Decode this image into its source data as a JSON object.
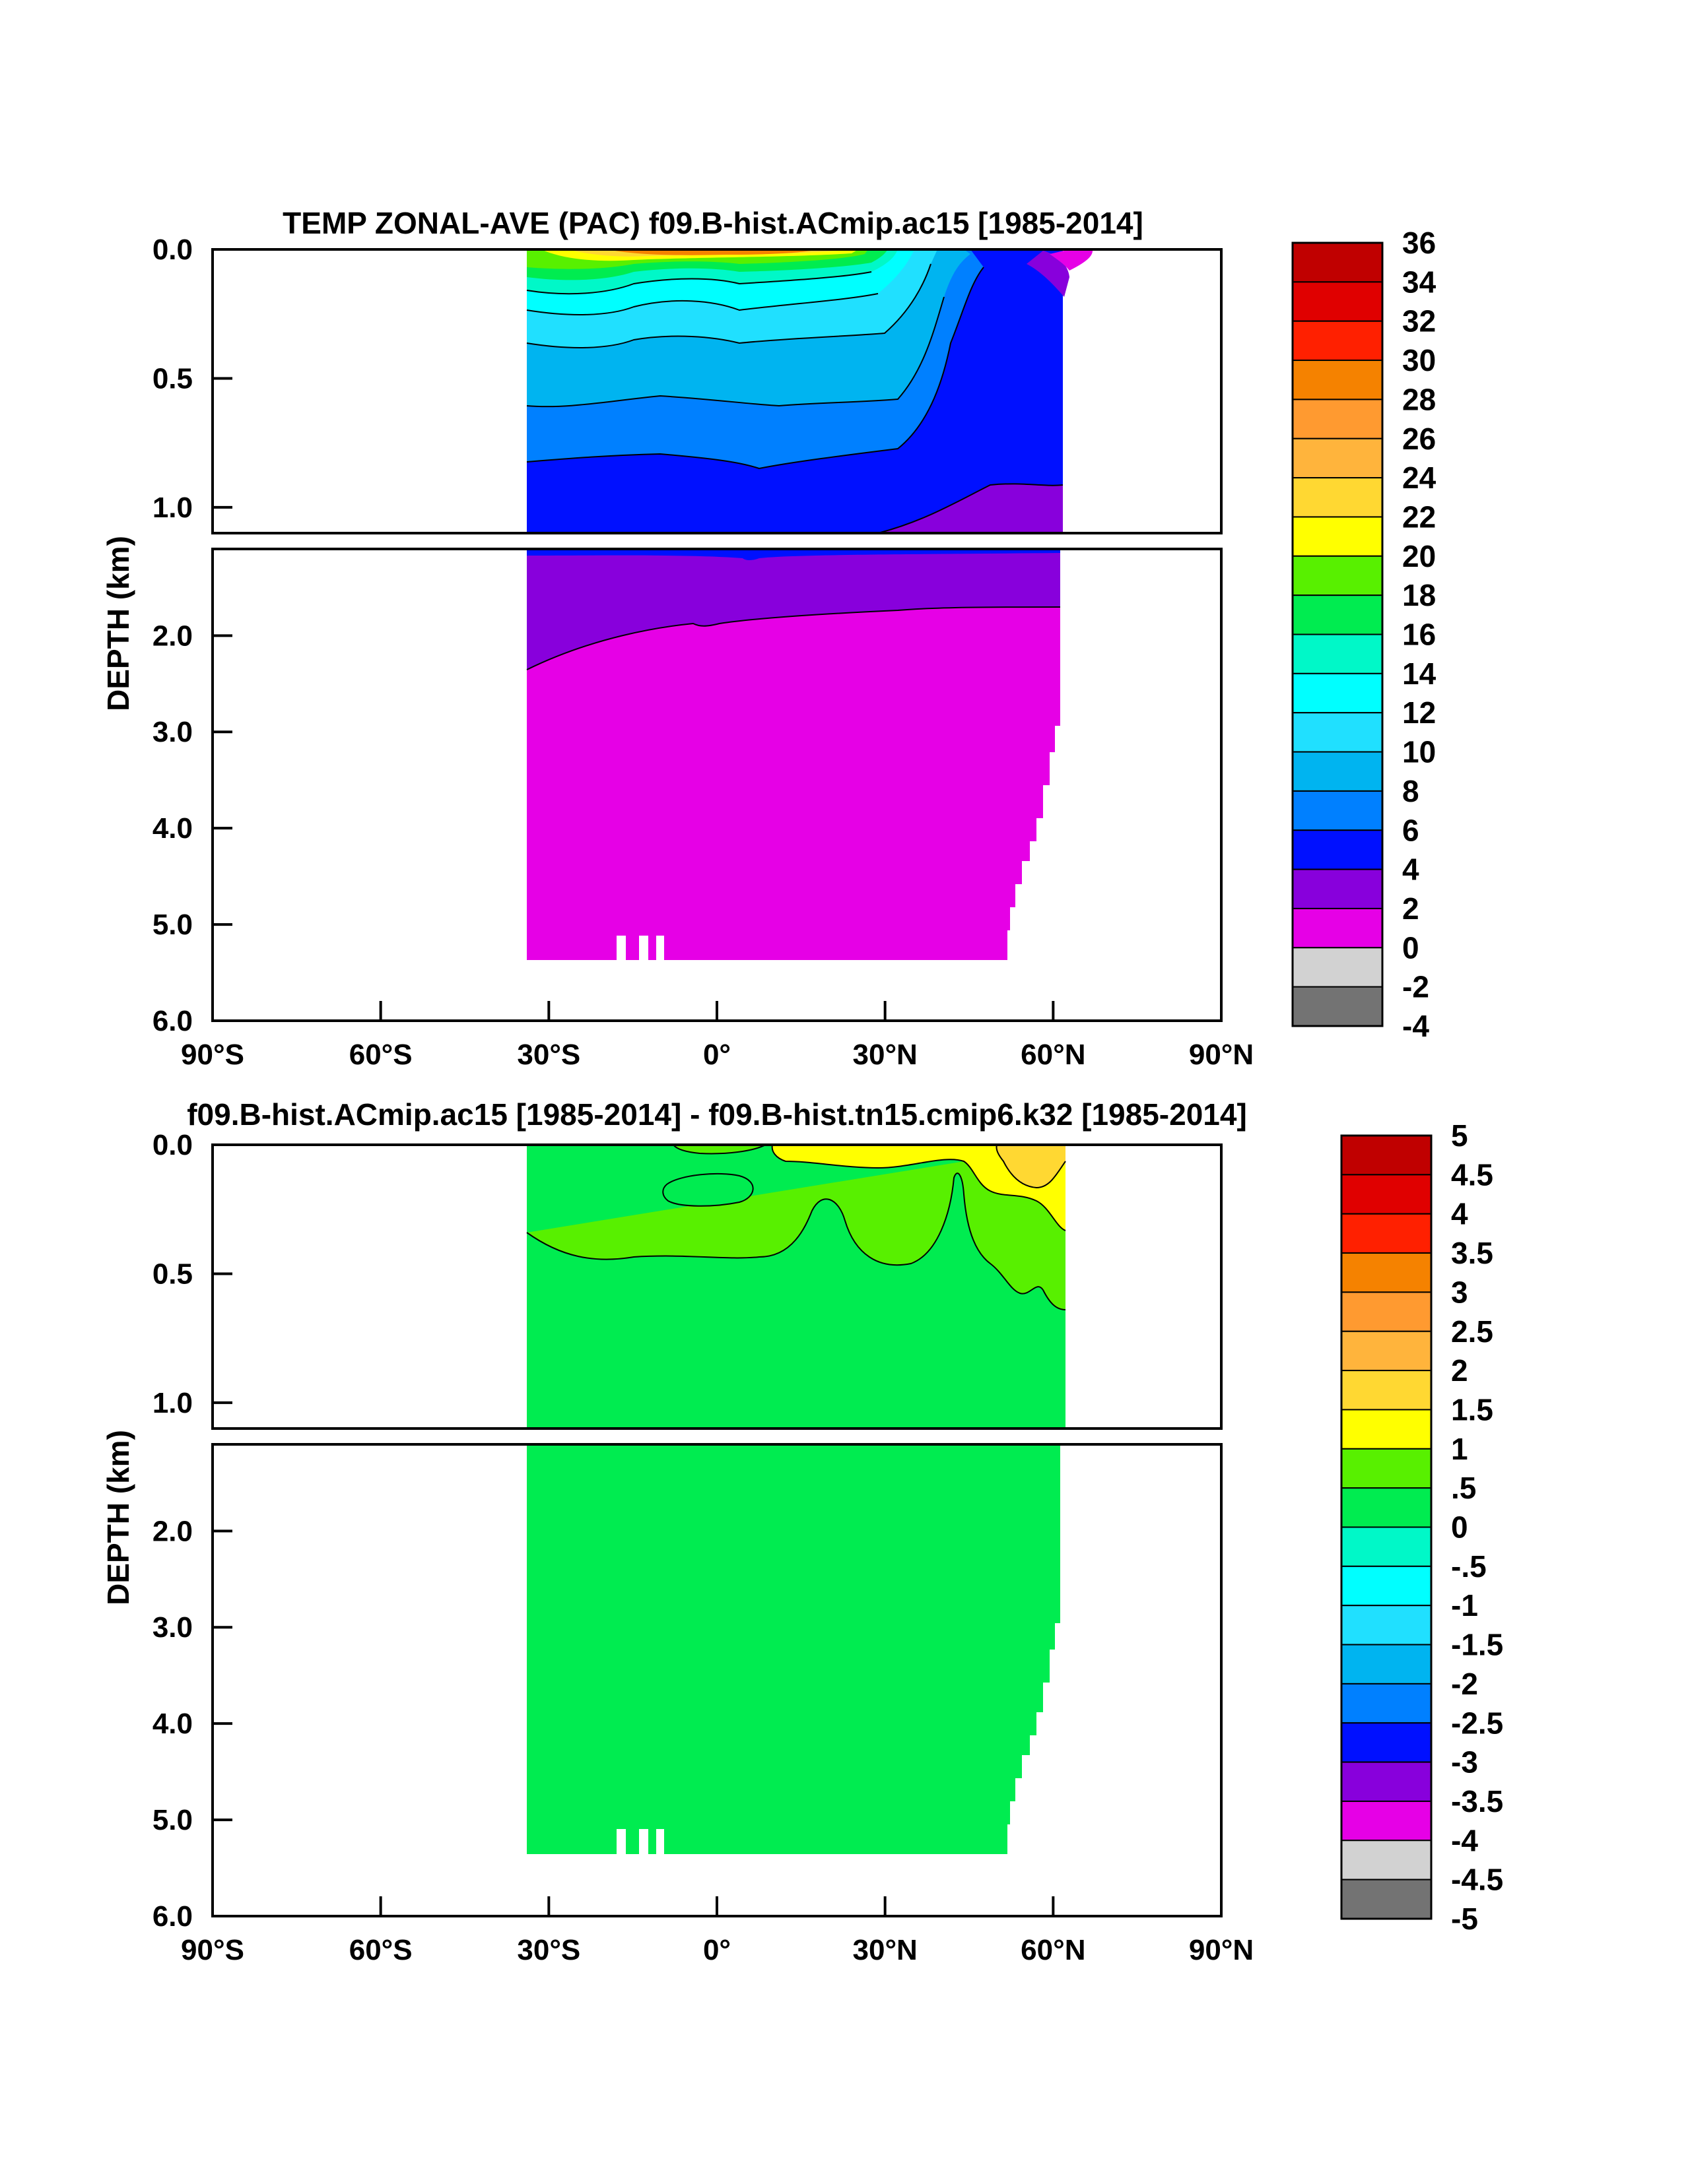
{
  "chart_data": [
    {
      "type": "heatmap",
      "title": "TEMP ZONAL-AVE (PAC) f09.B-hist.ACmip.ac15 [1985-2014]",
      "ylabel": "DEPTH (km)",
      "x_ticks": [
        "90°S",
        "60°S",
        "30°S",
        "0°",
        "30°N",
        "60°N",
        "90°N"
      ],
      "x_values": [
        -90,
        -60,
        -30,
        0,
        30,
        60,
        90
      ],
      "xlim": [
        -90,
        90
      ],
      "upper_panel": {
        "ylim": [
          0.0,
          1.1
        ],
        "y_ticks": [
          "0.0",
          "0.5",
          "1.0"
        ],
        "y_values": [
          0.0,
          0.5,
          1.0
        ]
      },
      "lower_panel": {
        "ylim": [
          1.1,
          6.0
        ],
        "y_ticks": [
          "2.0",
          "3.0",
          "4.0",
          "5.0",
          "6.0"
        ],
        "y_values": [
          2.0,
          3.0,
          4.0,
          5.0,
          6.0
        ]
      },
      "colorbar": {
        "labels": [
          "36",
          "34",
          "32",
          "30",
          "28",
          "26",
          "24",
          "22",
          "20",
          "18",
          "16",
          "14",
          "12",
          "10",
          "8",
          "6",
          "4",
          "2",
          "0",
          "-2",
          "-4"
        ],
        "colors": [
          "#c00000",
          "#e00000",
          "#ff2000",
          "#f58200",
          "#ff9a30",
          "#ffb43c",
          "#ffd832",
          "#ffff00",
          "#58f000",
          "#00ec50",
          "#00f8c8",
          "#00ffff",
          "#20e0ff",
          "#00b4f0",
          "#0080ff",
          "#0010ff",
          "#8800dc",
          "#e600e6",
          "#d2d2d2",
          "#737373"
        ]
      }
    },
    {
      "type": "heatmap",
      "title": "f09.B-hist.ACmip.ac15 [1985-2014] - f09.B-hist.tn15.cmip6.k32 [1985-2014]",
      "ylabel": "DEPTH (km)",
      "x_ticks": [
        "90°S",
        "60°S",
        "30°S",
        "0°",
        "30°N",
        "60°N",
        "90°N"
      ],
      "x_values": [
        -90,
        -60,
        -30,
        0,
        30,
        60,
        90
      ],
      "xlim": [
        -90,
        90
      ],
      "upper_panel": {
        "ylim": [
          0.0,
          1.1
        ],
        "y_ticks": [
          "0.0",
          "0.5",
          "1.0"
        ],
        "y_values": [
          0.0,
          0.5,
          1.0
        ]
      },
      "lower_panel": {
        "ylim": [
          1.1,
          6.0
        ],
        "y_ticks": [
          "2.0",
          "3.0",
          "4.0",
          "5.0",
          "6.0"
        ],
        "y_values": [
          2.0,
          3.0,
          4.0,
          5.0,
          6.0
        ]
      },
      "colorbar": {
        "labels": [
          "5",
          "4.5",
          "4",
          "3.5",
          "3",
          "2.5",
          "2",
          "1.5",
          "1",
          ".5",
          "0",
          "-.5",
          "-1",
          "-1.5",
          "-2",
          "-2.5",
          "-3",
          "-3.5",
          "-4",
          "-4.5",
          "-5"
        ],
        "colors": [
          "#c00000",
          "#e00000",
          "#ff2000",
          "#f58200",
          "#ff9a30",
          "#ffb43c",
          "#ffd832",
          "#ffff00",
          "#58f000",
          "#00ec50",
          "#00f8c8",
          "#00ffff",
          "#20e0ff",
          "#00b4f0",
          "#0080ff",
          "#0010ff",
          "#8800dc",
          "#e600e6",
          "#d2d2d2",
          "#737373"
        ]
      }
    }
  ]
}
